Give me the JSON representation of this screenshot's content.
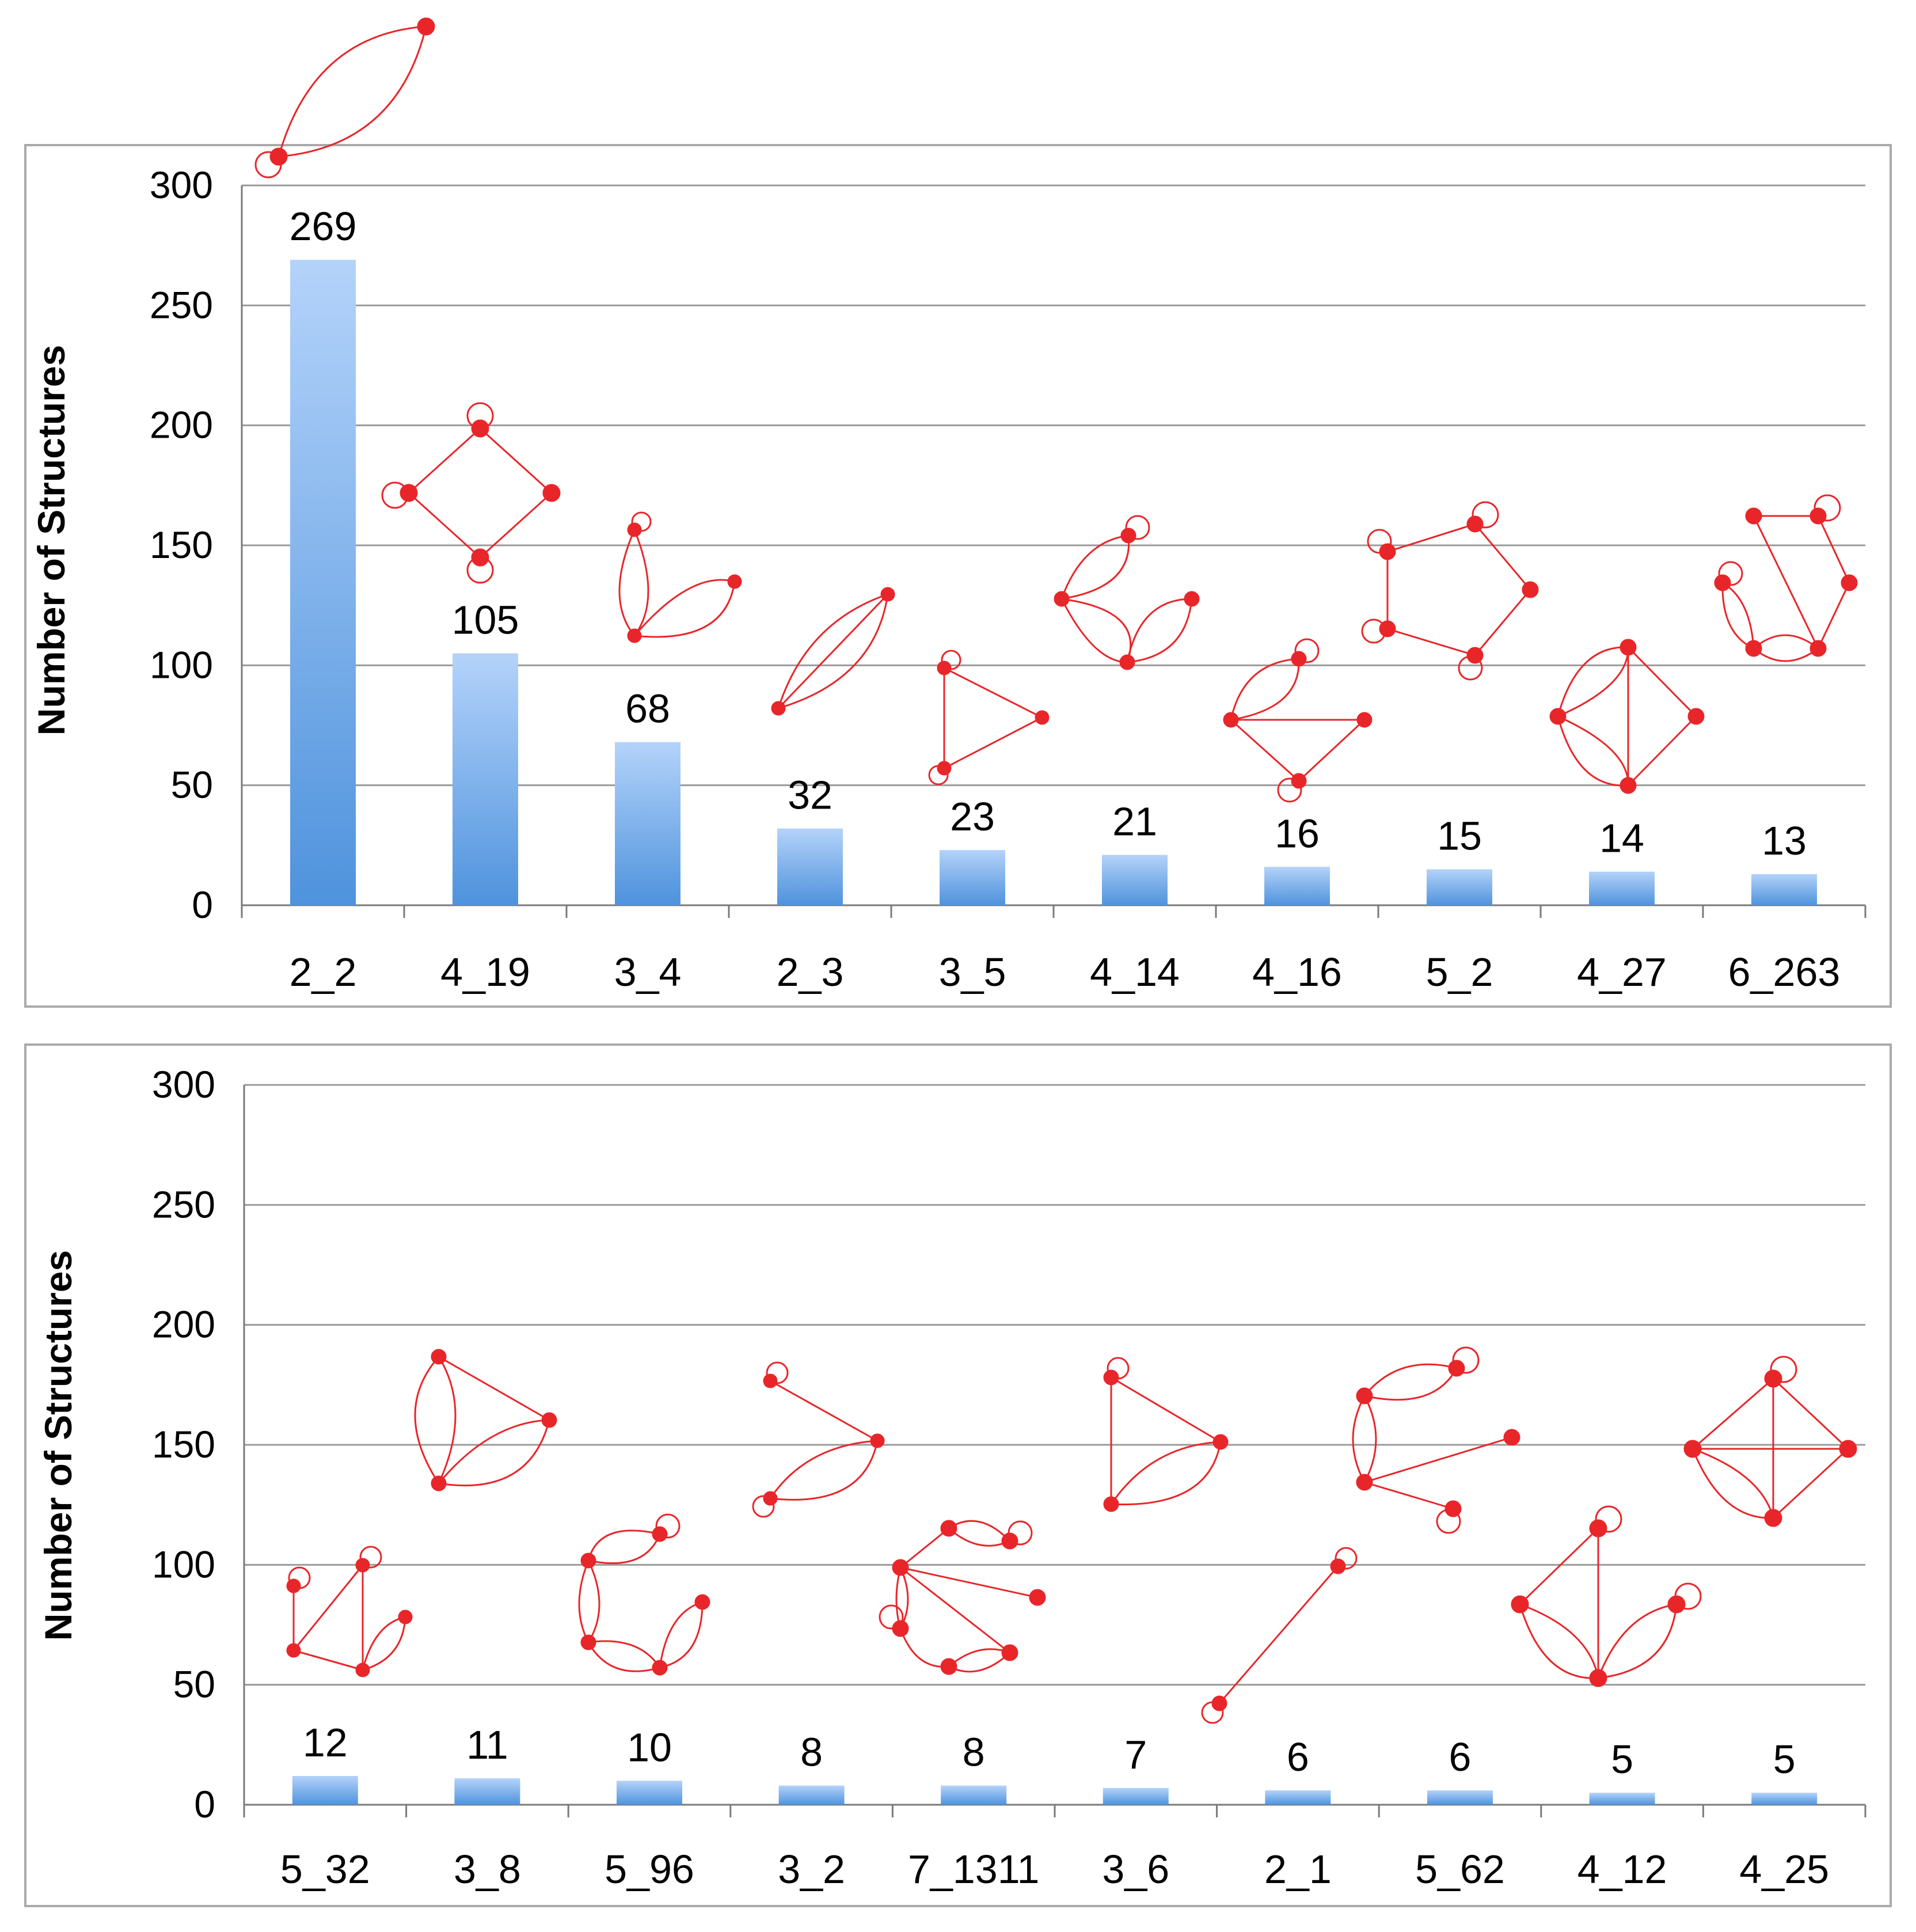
{
  "colors": {
    "bar_top": "#b4d3fa",
    "bar_bottom": "#4f93dd",
    "graph": "#e8262a",
    "grid": "#9a9a9a",
    "frame": "#aaaaaa"
  },
  "chart_data": [
    {
      "type": "bar",
      "title": "",
      "xlabel": "",
      "ylabel": "Number of Structures",
      "ylim": [
        0,
        300
      ],
      "yticks": [
        0,
        50,
        100,
        150,
        200,
        250,
        300
      ],
      "grid": true,
      "categories": [
        "2_2",
        "4_19",
        "3_4",
        "2_3",
        "3_5",
        "4_14",
        "4_16",
        "5_2",
        "4_27",
        "6_263"
      ],
      "values": [
        269,
        105,
        68,
        32,
        23,
        21,
        16,
        15,
        14,
        13
      ],
      "annotations": "Each bar is annotated with a red graph drawing (nodes with loops and edges) representing the structure type."
    },
    {
      "type": "bar",
      "title": "",
      "xlabel": "",
      "ylabel": "Number of Structures",
      "ylim": [
        0,
        300
      ],
      "yticks": [
        0,
        50,
        100,
        150,
        200,
        250,
        300
      ],
      "grid": true,
      "categories": [
        "5_32",
        "3_8",
        "5_96",
        "3_2",
        "7_1311",
        "3_6",
        "2_1",
        "5_62",
        "4_12",
        "4_25"
      ],
      "values": [
        12,
        11,
        10,
        8,
        8,
        7,
        6,
        6,
        5,
        5
      ],
      "annotations": "Each bar is annotated with a red graph drawing (nodes with loops and edges) representing the structure type."
    }
  ]
}
